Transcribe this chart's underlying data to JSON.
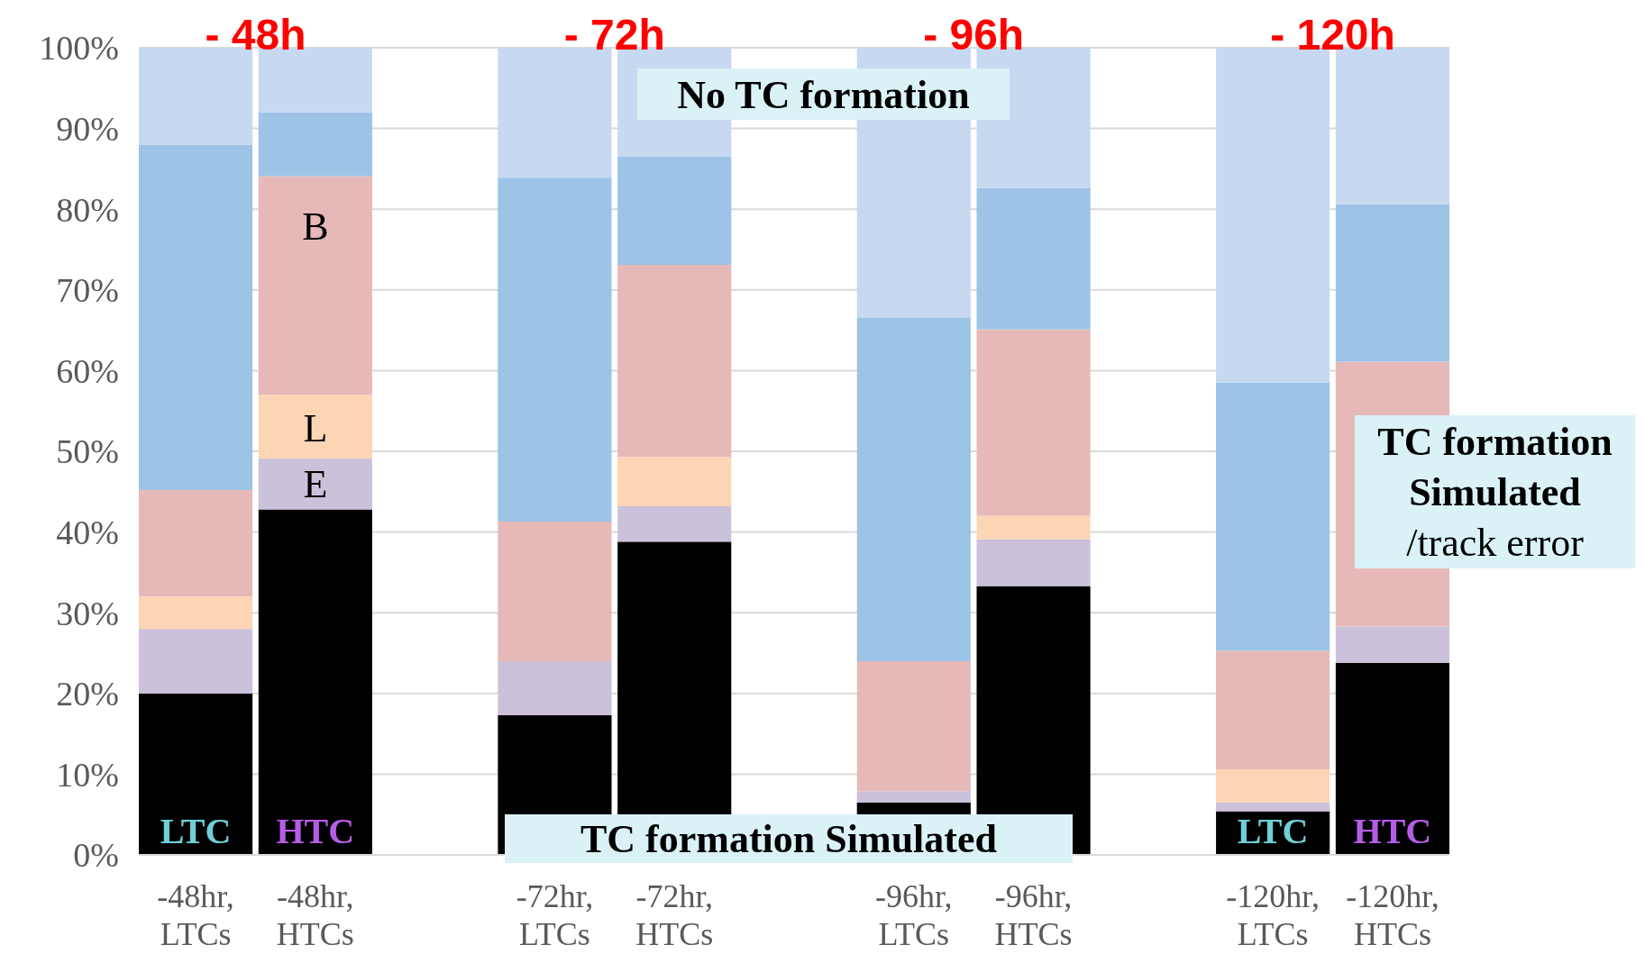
{
  "chart_data": {
    "type": "bar",
    "stacked": true,
    "grid": "y",
    "categories": [
      "-48hr, LTCs",
      "-48hr, HTCs",
      null,
      "-72hr, LTCs",
      "-72hr, HTCs",
      null,
      "-96hr, LTCs",
      "-96hr, HTCs",
      null,
      "-120hr, LTCs",
      "-120hr, HTCs"
    ],
    "ylim": [
      0,
      100
    ],
    "yticks": [
      {
        "value": 0,
        "label": "0%"
      },
      {
        "value": 10,
        "label": "10%"
      },
      {
        "value": 20,
        "label": "20%"
      },
      {
        "value": 30,
        "label": "30%"
      },
      {
        "value": 40,
        "label": "40%"
      },
      {
        "value": 50,
        "label": "50%"
      },
      {
        "value": 60,
        "label": "60%"
      },
      {
        "value": 70,
        "label": "70%"
      },
      {
        "value": 80,
        "label": "80%"
      },
      {
        "value": 90,
        "label": "90%"
      },
      {
        "value": 100,
        "label": "100%"
      }
    ],
    "series": [
      {
        "color": "#000000",
        "values": [
          20,
          42.8,
          null,
          17.3,
          38.8,
          null,
          6.5,
          33.3,
          null,
          5.4,
          23.8
        ]
      },
      {
        "color": "#ccc1da",
        "values": [
          8,
          6.3,
          null,
          6.7,
          4.4,
          null,
          1.4,
          5.8,
          null,
          1.1,
          4.5
        ]
      },
      {
        "color": "#fcd5b5",
        "values": [
          4,
          7.9,
          null,
          0,
          6.1,
          null,
          0,
          2.9,
          null,
          4.1,
          0
        ]
      },
      {
        "color": "#e6b9b8",
        "values": [
          13.2,
          27.1,
          null,
          17.3,
          23.8,
          null,
          16.1,
          23.1,
          null,
          14.7,
          32.8
        ]
      },
      {
        "color": "#9dc3e6",
        "values": [
          42.8,
          7.9,
          null,
          42.6,
          13.4,
          null,
          42.6,
          17.5,
          null,
          33.2,
          19.5
        ]
      },
      {
        "color": "#c6d9f1",
        "values": [
          12,
          8,
          null,
          16.1,
          13.5,
          null,
          33.4,
          17.4,
          null,
          41.5,
          19.4
        ]
      }
    ],
    "annotations": [
      "- 48h",
      "- 72h",
      "- 96h",
      "- 120h",
      "No TC formation",
      "TC formation Simulated",
      "TC formation Simulated /track error",
      "B",
      "L",
      "E",
      "LTC",
      "HTC",
      "LTC",
      "HTC"
    ]
  }
}
